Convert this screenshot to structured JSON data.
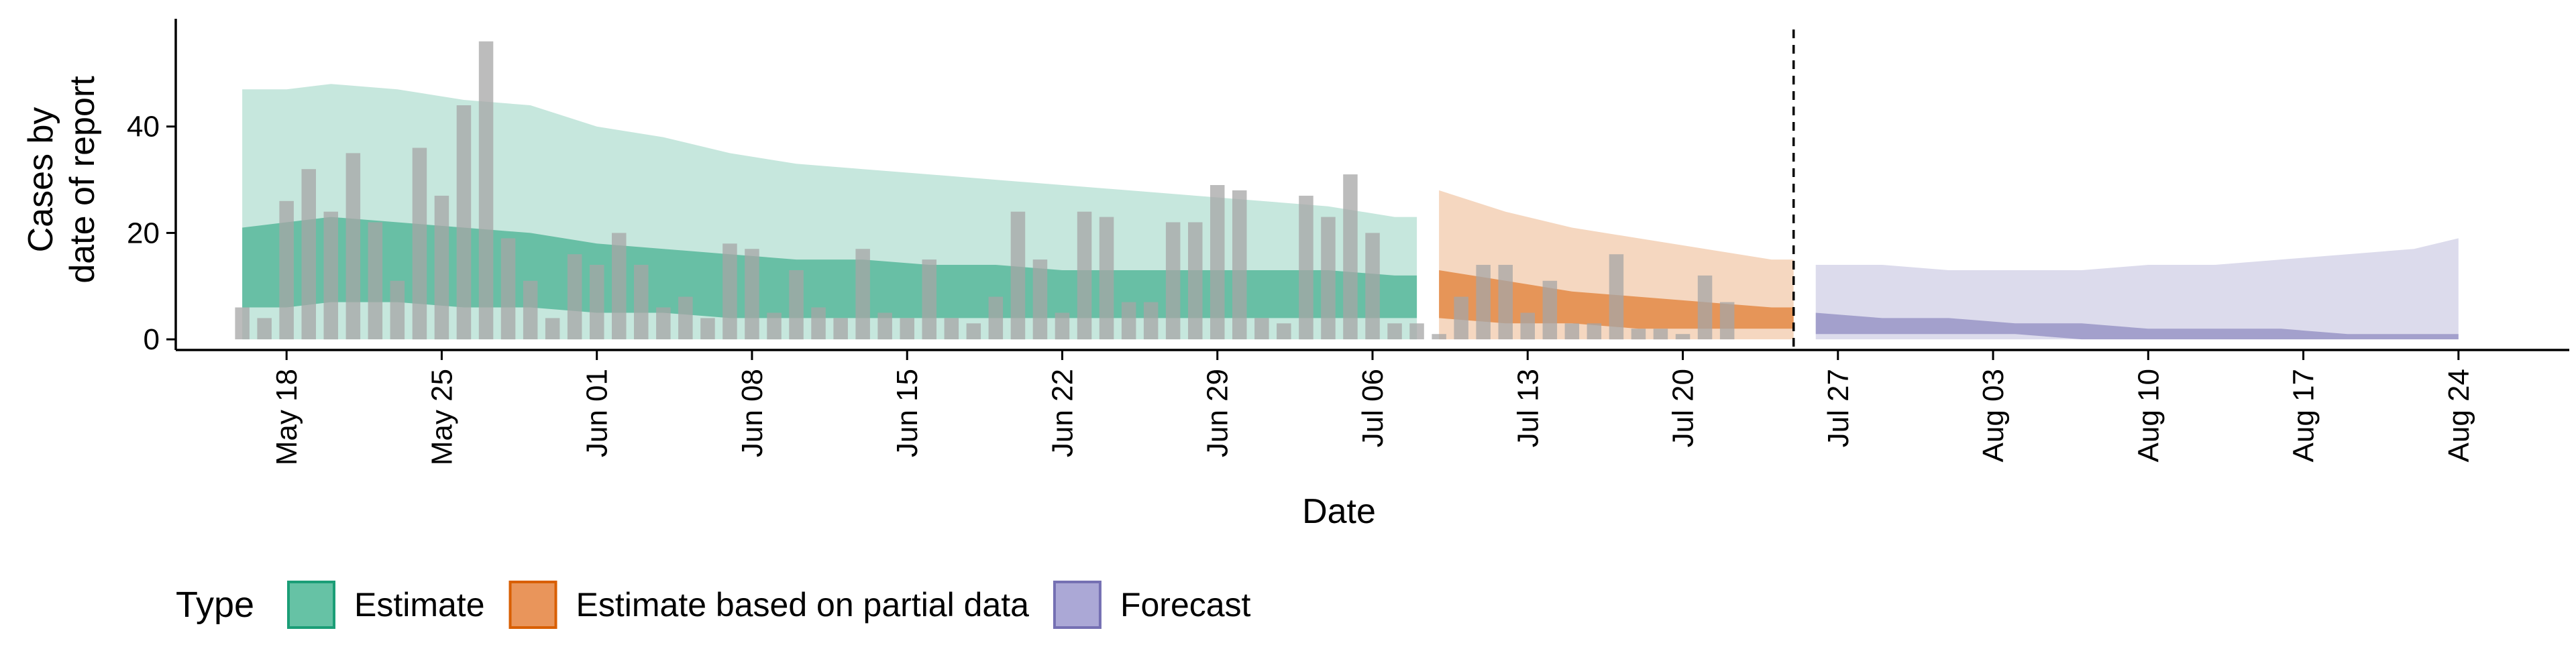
{
  "chart_data": {
    "type": "bar",
    "xlabel": "Date",
    "ylabel_lines": [
      "Cases by",
      "date of report"
    ],
    "y_ticks": [
      0,
      20,
      40
    ],
    "x_tick_labels": [
      "May 18",
      "May 25",
      "Jun 01",
      "Jun 08",
      "Jun 15",
      "Jun 22",
      "Jun 29",
      "Jul 06",
      "Jul 13",
      "Jul 20",
      "Jul 27",
      "Aug 03",
      "Aug 10",
      "Aug 17",
      "Aug 24"
    ],
    "xlim": [
      "2020-05-13",
      "2020-08-29"
    ],
    "ylim": [
      -2,
      60
    ],
    "reference_line_date": "2020-07-25",
    "legend": {
      "title": "Type",
      "position": "bottom-left",
      "entries": [
        {
          "label": "Estimate",
          "fill": "#66c2a5",
          "stroke": "#1b9e77"
        },
        {
          "label": "Estimate based on partial data",
          "fill": "#e9955b",
          "stroke": "#d95f02"
        },
        {
          "label": "Forecast",
          "fill": "#aba8d6",
          "stroke": "#7570b3"
        }
      ]
    },
    "colors": {
      "bars": "#a6a6a6",
      "estimate": "#1b9e77",
      "partial": "#d95f02",
      "forecast": "#7570b3"
    },
    "reported_cases": {
      "start_date": "2020-05-16",
      "values": [
        6,
        4,
        26,
        32,
        24,
        35,
        22,
        11,
        36,
        27,
        44,
        56,
        19,
        11,
        4,
        16,
        14,
        20,
        14,
        6,
        8,
        4,
        18,
        17,
        5,
        13,
        6,
        4,
        17,
        5,
        4,
        15,
        4,
        3,
        8,
        24,
        15,
        5,
        24,
        23,
        7,
        7,
        22,
        22,
        29,
        28,
        4,
        3,
        27,
        23,
        31,
        20,
        3,
        3,
        1,
        8,
        14,
        14,
        5,
        11,
        3,
        3,
        16,
        2,
        2,
        1,
        12,
        7
      ]
    },
    "series": [
      {
        "name": "Estimate",
        "dates": [
          "2020-05-16",
          "2020-05-18",
          "2020-05-20",
          "2020-05-23",
          "2020-05-26",
          "2020-05-29",
          "2020-06-01",
          "2020-06-04",
          "2020-06-07",
          "2020-06-10",
          "2020-06-13",
          "2020-06-16",
          "2020-06-19",
          "2020-06-22",
          "2020-06-25",
          "2020-06-28",
          "2020-07-01",
          "2020-07-04",
          "2020-07-07",
          "2020-07-08"
        ],
        "upper90": [
          47,
          47,
          48,
          47,
          45,
          44,
          40,
          38,
          35,
          33,
          32,
          31,
          30,
          29,
          28,
          27,
          26,
          25,
          23,
          23
        ],
        "upper50": [
          21,
          22,
          23,
          22,
          21,
          20,
          18,
          17,
          16,
          15,
          15,
          14,
          14,
          13,
          13,
          13,
          13,
          13,
          12,
          12
        ],
        "lower50": [
          6,
          6,
          7,
          7,
          6,
          6,
          5,
          5,
          4,
          4,
          4,
          4,
          4,
          4,
          4,
          4,
          4,
          4,
          4,
          4
        ],
        "lower90": [
          0,
          0,
          0,
          0,
          0,
          0,
          0,
          0,
          0,
          0,
          0,
          0,
          0,
          0,
          0,
          0,
          0,
          0,
          0,
          0
        ]
      },
      {
        "name": "Estimate based on partial data",
        "dates": [
          "2020-07-09",
          "2020-07-12",
          "2020-07-15",
          "2020-07-18",
          "2020-07-21",
          "2020-07-24",
          "2020-07-25"
        ],
        "upper90": [
          28,
          24,
          21,
          19,
          17,
          15,
          15
        ],
        "upper50": [
          13,
          11,
          9,
          8,
          7,
          6,
          6
        ],
        "lower50": [
          4,
          3,
          3,
          2,
          2,
          2,
          2
        ],
        "lower90": [
          0,
          0,
          0,
          0,
          0,
          0,
          0
        ]
      },
      {
        "name": "Forecast",
        "dates": [
          "2020-07-26",
          "2020-07-29",
          "2020-08-01",
          "2020-08-04",
          "2020-08-07",
          "2020-08-10",
          "2020-08-13",
          "2020-08-16",
          "2020-08-19",
          "2020-08-22",
          "2020-08-24"
        ],
        "upper90": [
          14,
          14,
          13,
          13,
          13,
          14,
          14,
          15,
          16,
          17,
          19
        ],
        "upper50": [
          5,
          4,
          4,
          3,
          3,
          2,
          2,
          2,
          1,
          1,
          1
        ],
        "lower50": [
          1,
          1,
          1,
          1,
          0,
          0,
          0,
          0,
          0,
          0,
          0
        ],
        "lower90": [
          0,
          0,
          0,
          0,
          0,
          0,
          0,
          0,
          0,
          0,
          0
        ]
      }
    ]
  }
}
